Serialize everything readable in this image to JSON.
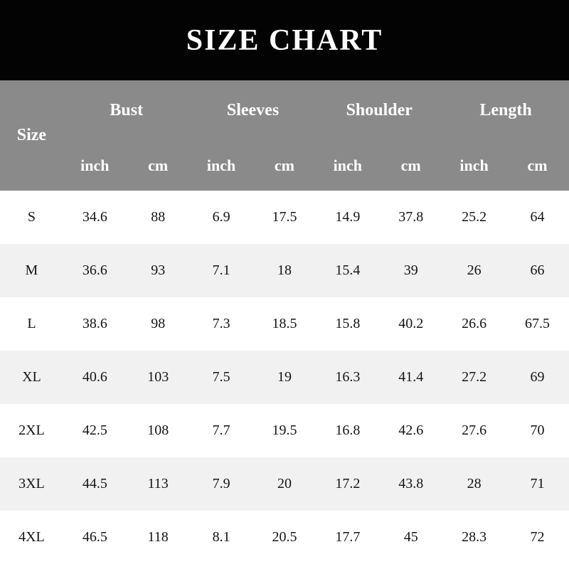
{
  "banner": {
    "title": "SIZE CHART"
  },
  "colors": {
    "banner_bg": "#030303",
    "banner_text": "#ffffff",
    "header_bg": "#8a8a8a",
    "header_text": "#ffffff",
    "row_alt_bg": "#f1f1f1",
    "row_bg": "#ffffff",
    "body_text": "#151515"
  },
  "table": {
    "size_header": "Size",
    "groups": [
      "Bust",
      "Sleeves",
      "Shoulder",
      "Length"
    ],
    "unit_inch": "inch",
    "unit_cm": "cm",
    "rows": [
      {
        "size": "S",
        "values": [
          "34.6",
          "88",
          "6.9",
          "17.5",
          "14.9",
          "37.8",
          "25.2",
          "64"
        ]
      },
      {
        "size": "M",
        "values": [
          "36.6",
          "93",
          "7.1",
          "18",
          "15.4",
          "39",
          "26",
          "66"
        ]
      },
      {
        "size": "L",
        "values": [
          "38.6",
          "98",
          "7.3",
          "18.5",
          "15.8",
          "40.2",
          "26.6",
          "67.5"
        ]
      },
      {
        "size": "XL",
        "values": [
          "40.6",
          "103",
          "7.5",
          "19",
          "16.3",
          "41.4",
          "27.2",
          "69"
        ]
      },
      {
        "size": "2XL",
        "values": [
          "42.5",
          "108",
          "7.7",
          "19.5",
          "16.8",
          "42.6",
          "27.6",
          "70"
        ]
      },
      {
        "size": "3XL",
        "values": [
          "44.5",
          "113",
          "7.9",
          "20",
          "17.2",
          "43.8",
          "28",
          "71"
        ]
      },
      {
        "size": "4XL",
        "values": [
          "46.5",
          "118",
          "8.1",
          "20.5",
          "17.7",
          "45",
          "28.3",
          "72"
        ]
      }
    ]
  },
  "chart_data": {
    "type": "table",
    "title": "SIZE CHART",
    "columns": [
      "Size",
      "Bust inch",
      "Bust cm",
      "Sleeves inch",
      "Sleeves cm",
      "Shoulder inch",
      "Shoulder cm",
      "Length inch",
      "Length cm"
    ],
    "rows": [
      [
        "S",
        34.6,
        88,
        6.9,
        17.5,
        14.9,
        37.8,
        25.2,
        64
      ],
      [
        "M",
        36.6,
        93,
        7.1,
        18,
        15.4,
        39,
        26,
        66
      ],
      [
        "L",
        38.6,
        98,
        7.3,
        18.5,
        15.8,
        40.2,
        26.6,
        67.5
      ],
      [
        "XL",
        40.6,
        103,
        7.5,
        19,
        16.3,
        41.4,
        27.2,
        69
      ],
      [
        "2XL",
        42.5,
        108,
        7.7,
        19.5,
        16.8,
        42.6,
        27.6,
        70
      ],
      [
        "3XL",
        44.5,
        113,
        7.9,
        20,
        17.2,
        43.8,
        28,
        71
      ],
      [
        "4XL",
        46.5,
        118,
        8.1,
        20.5,
        17.7,
        45,
        28.3,
        72
      ]
    ]
  }
}
